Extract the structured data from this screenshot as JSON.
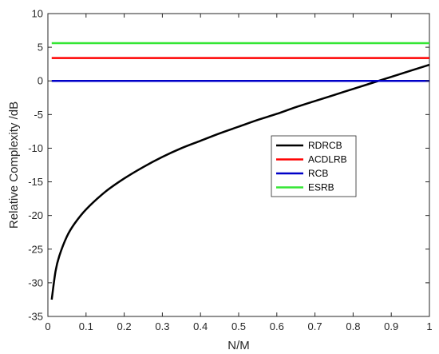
{
  "chart_data": {
    "type": "line",
    "xlabel": "N/M",
    "ylabel": "Relative Complexity /dB",
    "xlim": [
      0,
      1
    ],
    "ylim": [
      -35,
      10
    ],
    "xticks": [
      0,
      0.1,
      0.2,
      0.3,
      0.4,
      0.5,
      0.6,
      0.7,
      0.8,
      0.9,
      1
    ],
    "xtick_labels": [
      "0",
      "0.1",
      "0.2",
      "0.3",
      "0.4",
      "0.5",
      "0.6",
      "0.7",
      "0.8",
      "0.9",
      "1"
    ],
    "yticks": [
      -35,
      -30,
      -25,
      -20,
      -15,
      -10,
      -5,
      0,
      5,
      10
    ],
    "ytick_labels": [
      "-35",
      "-30",
      "-25",
      "-20",
      "-15",
      "-10",
      "-5",
      "0",
      "5",
      "10"
    ],
    "grid": false,
    "legend_position": "middle-right",
    "series": [
      {
        "name": "RDRCB",
        "color": "#000000",
        "x": [
          0.01,
          0.02,
          0.03,
          0.05,
          0.07,
          0.1,
          0.15,
          0.2,
          0.25,
          0.3,
          0.35,
          0.4,
          0.45,
          0.5,
          0.55,
          0.6,
          0.65,
          0.7,
          0.75,
          0.8,
          0.85,
          0.9,
          0.95,
          1.0
        ],
        "y": [
          -32.5,
          -28.3,
          -26.0,
          -23.1,
          -21.2,
          -19.1,
          -16.5,
          -14.5,
          -12.8,
          -11.3,
          -10.0,
          -8.9,
          -7.8,
          -6.8,
          -5.8,
          -4.9,
          -3.9,
          -3.0,
          -2.1,
          -1.2,
          -0.3,
          0.6,
          1.5,
          2.4
        ]
      },
      {
        "name": "ACDLRB",
        "color": "#ff0000",
        "x": [
          0.01,
          1.0
        ],
        "y": [
          3.4,
          3.4
        ]
      },
      {
        "name": "RCB",
        "color": "#0000c8",
        "x": [
          0.01,
          1.0
        ],
        "y": [
          0,
          0
        ]
      },
      {
        "name": "ESRB",
        "color": "#33e633",
        "x": [
          0.01,
          1.0
        ],
        "y": [
          5.6,
          5.6
        ]
      }
    ]
  }
}
